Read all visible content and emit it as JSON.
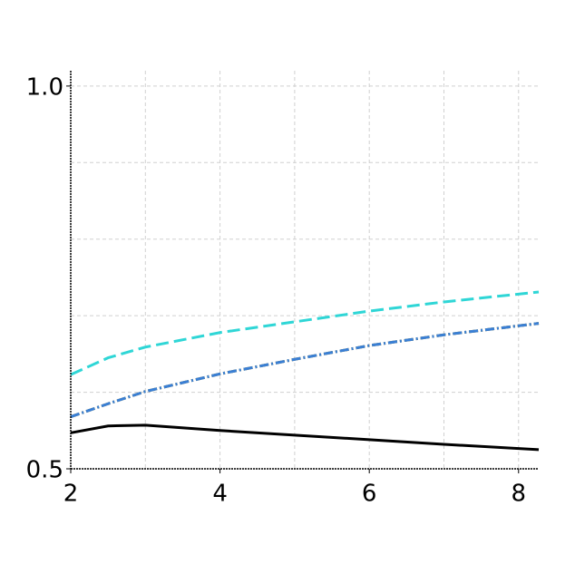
{
  "chart_data": {
    "type": "line",
    "x": [
      2,
      2.5,
      3,
      4,
      5,
      6,
      7,
      8.27
    ],
    "series": [
      {
        "color": "#000000",
        "dash": "solid",
        "values": [
          0.547,
          0.556,
          0.557,
          0.55,
          0.544,
          0.538,
          0.532,
          0.525
        ]
      },
      {
        "color": "#2fd6d6",
        "dash": "dashed",
        "values": [
          0.623,
          0.645,
          0.659,
          0.678,
          0.692,
          0.706,
          0.718,
          0.731
        ]
      },
      {
        "color": "#e8585a",
        "dash": "dashdot",
        "values": [
          0.568,
          0.585,
          0.601,
          0.624,
          0.643,
          0.661,
          0.675,
          0.69
        ]
      },
      {
        "color": "#7cb342",
        "dash": "dashdot",
        "values": [
          0.568,
          0.585,
          0.601,
          0.624,
          0.643,
          0.661,
          0.675,
          0.69
        ]
      },
      {
        "color": "#3a7fd5",
        "dash": "dashdot",
        "values": [
          0.568,
          0.585,
          0.601,
          0.624,
          0.643,
          0.661,
          0.675,
          0.69
        ]
      }
    ],
    "xlim": [
      2,
      8.27
    ],
    "xticks": [
      2,
      4,
      6,
      8
    ],
    "xminor": [
      3,
      5,
      7
    ],
    "ylim": [
      0.5,
      1.02
    ],
    "yticks": [
      0.5,
      {
        "value": 1,
        "label": "1.0"
      }
    ],
    "yminor": [
      0.6,
      0.7,
      0.8,
      0.9
    ],
    "grid": true
  }
}
